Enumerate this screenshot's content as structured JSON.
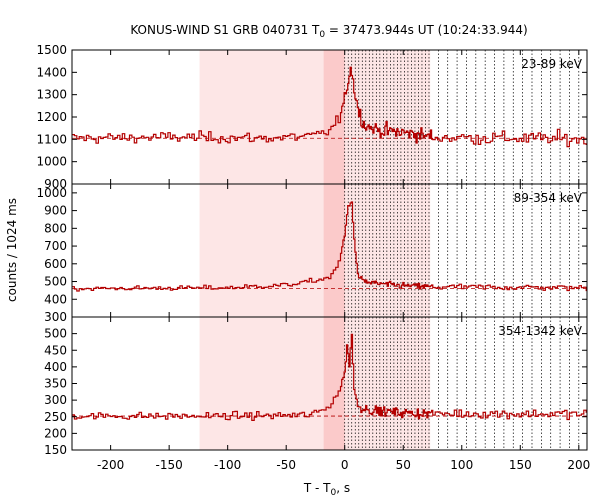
{
  "chart_data": {
    "type": "line",
    "title": "KONUS-WIND S1 GRB 040731 T",
    "title_sub": "0",
    "title_rest": " = 37473.944s UT (10:24:33.944)",
    "xlabel": "T - T",
    "xlabel_sub": "0",
    "xlabel_rest": ", s",
    "ylabel": "counts / 1024 ms",
    "xlim": [
      -233,
      207
    ],
    "x_ticks": [
      -200,
      -150,
      -100,
      -50,
      0,
      50,
      100,
      150,
      200
    ],
    "x_tick_labels": [
      "-200",
      "-150",
      "-100",
      "-50",
      "0",
      "50",
      "100",
      "150",
      "200"
    ],
    "shaded_regions": [
      {
        "x0": -124,
        "x1": 73,
        "color": "#fde6e6"
      },
      {
        "x0": -18,
        "x1": 0,
        "color": "#fbcaca"
      }
    ],
    "vertical_dotted_lines": [
      0,
      3,
      6,
      9,
      12,
      15,
      18,
      21,
      24,
      27,
      30,
      33,
      36,
      39,
      42,
      45,
      48,
      51,
      54,
      57,
      60,
      63,
      66,
      69,
      72,
      80,
      88,
      96,
      104,
      112,
      120,
      128,
      136,
      144,
      152,
      160,
      168,
      176,
      184,
      192,
      200
    ],
    "line_color": "#b30000",
    "panels": [
      {
        "label": "23-89 keV",
        "ylim": [
          900,
          1500
        ],
        "y_ticks": [
          900,
          1000,
          1100,
          1200,
          1300,
          1400,
          1500
        ],
        "y_tick_labels": [
          "900",
          "1000",
          "1100",
          "1200",
          "1300",
          "1400",
          "1500"
        ],
        "background": 1105,
        "noise": 22,
        "shape": [
          [
            -233,
            1105
          ],
          [
            -140,
            1110
          ],
          [
            -70,
            1105
          ],
          [
            -25,
            1115
          ],
          [
            -12,
            1140
          ],
          [
            -4,
            1200
          ],
          [
            0,
            1280
          ],
          [
            3,
            1360
          ],
          [
            5,
            1430
          ],
          [
            8,
            1330
          ],
          [
            12,
            1220
          ],
          [
            18,
            1160
          ],
          [
            30,
            1140
          ],
          [
            60,
            1125
          ],
          [
            75,
            1110
          ],
          [
            207,
            1100
          ]
        ]
      },
      {
        "label": "89-354 keV",
        "ylim": [
          300,
          1050
        ],
        "y_ticks": [
          300,
          400,
          500,
          600,
          700,
          800,
          900,
          1000
        ],
        "y_tick_labels": [
          "300",
          "400",
          "500",
          "600",
          "700",
          "800",
          "900",
          "1000"
        ],
        "background": 460,
        "noise": 12,
        "shape": [
          [
            -233,
            460
          ],
          [
            -100,
            465
          ],
          [
            -50,
            480
          ],
          [
            -25,
            505
          ],
          [
            -12,
            525
          ],
          [
            -5,
            600
          ],
          [
            0,
            760
          ],
          [
            3,
            930
          ],
          [
            6,
            950
          ],
          [
            8,
            760
          ],
          [
            10,
            600
          ],
          [
            12,
            520
          ],
          [
            20,
            495
          ],
          [
            40,
            480
          ],
          [
            75,
            470
          ],
          [
            207,
            465
          ]
        ]
      },
      {
        "label": "354-1342 keV",
        "ylim": [
          150,
          550
        ],
        "y_ticks": [
          150,
          200,
          250,
          300,
          350,
          400,
          450,
          500
        ],
        "y_tick_labels": [
          "150",
          "200",
          "250",
          "300",
          "350",
          "400",
          "450",
          "500"
        ],
        "background": 252,
        "noise": 10,
        "shape": [
          [
            -233,
            252
          ],
          [
            -100,
            252
          ],
          [
            -30,
            255
          ],
          [
            -15,
            275
          ],
          [
            -5,
            325
          ],
          [
            0,
            380
          ],
          [
            2,
            470
          ],
          [
            4,
            400
          ],
          [
            6,
            510
          ],
          [
            8,
            330
          ],
          [
            12,
            280
          ],
          [
            25,
            268
          ],
          [
            60,
            260
          ],
          [
            207,
            258
          ]
        ]
      }
    ]
  }
}
